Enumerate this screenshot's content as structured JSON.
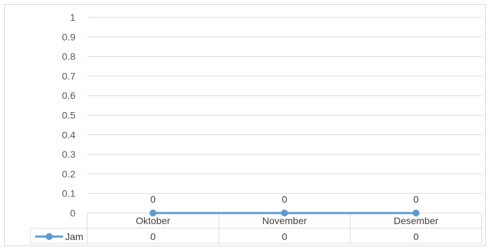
{
  "chart_data": {
    "type": "line",
    "categories": [
      "Oktober",
      "November",
      "Desember"
    ],
    "series": [
      {
        "name": "Jam",
        "values": [
          0,
          0,
          0
        ],
        "color": "#5b9bd5"
      }
    ],
    "y_ticks": [
      "0",
      "0.1",
      "0.2",
      "0.3",
      "0.4",
      "0.5",
      "0.6",
      "0.7",
      "0.8",
      "0.9",
      "1"
    ],
    "data_labels": [
      "0",
      "0",
      "0"
    ],
    "table_values": [
      "0",
      "0",
      "0"
    ],
    "ylim": [
      0,
      1
    ],
    "grid": true,
    "legend_placement": "data-table",
    "colors": {
      "gridline": "#d9d9d9",
      "text": "#595959",
      "series": "#5b9bd5"
    }
  }
}
